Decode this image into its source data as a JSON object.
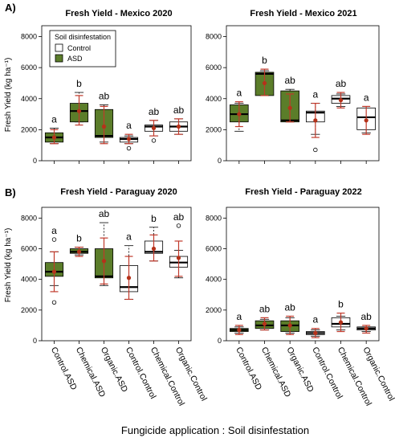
{
  "figure": {
    "x_axis_title": "Fungicide application : Soil disinfestation",
    "y_axis_title": "Fresh Yield (kg ha⁻¹)",
    "section_labels": [
      "A)",
      "B)"
    ],
    "y_tick_labels": [
      "0",
      "2000",
      "4000",
      "6000",
      "8000"
    ]
  },
  "legend": {
    "title": "Soil disinfestation",
    "items": [
      {
        "label": "Control",
        "color": "#ffffff"
      },
      {
        "label": "ASD",
        "color": "#5b7d2a"
      }
    ]
  },
  "colors": {
    "asd_fill": "#5b7d2a",
    "control_fill": "#ffffff",
    "mean_point": "#b5321a",
    "error_bar": "#c0392b"
  },
  "categories": [
    "Control.ASD",
    "Chemical.ASD",
    "Organic.ASD",
    "Control.Control",
    "Chemical.Control",
    "Organic.Control"
  ],
  "chart_data": [
    {
      "type": "box",
      "title": "Fresh Yield - Mexico 2020",
      "ylabel": "Fresh Yield (kg ha⁻¹)",
      "ylim": [
        0,
        8700
      ],
      "categories": [
        "Control.ASD",
        "Chemical.ASD",
        "Organic.ASD",
        "Control.Control",
        "Chemical.Control",
        "Organic.Control"
      ],
      "fills": [
        "ASD",
        "ASD",
        "ASD",
        "Control",
        "Control",
        "Control"
      ],
      "boxes": [
        {
          "whisker_low": 1100,
          "q1": 1200,
          "median": 1500,
          "q3": 1800,
          "whisker_high": 2100,
          "outliers": []
        },
        {
          "whisker_low": 2500,
          "q1": 2500,
          "median": 3200,
          "q3": 3700,
          "whisker_high": 4400,
          "outliers": []
        },
        {
          "whisker_low": 1200,
          "q1": 1500,
          "median": 1600,
          "q3": 3300,
          "whisker_high": 3600,
          "outliers": []
        },
        {
          "whisker_low": 1100,
          "q1": 1200,
          "median": 1400,
          "q3": 1500,
          "whisker_high": 1600,
          "outliers": [
            800
          ]
        },
        {
          "whisker_low": 1600,
          "q1": 1900,
          "median": 2200,
          "q3": 2300,
          "whisker_high": 2600,
          "outliers": [
            1300
          ]
        },
        {
          "whisker_low": 1700,
          "q1": 1900,
          "median": 2200,
          "q3": 2500,
          "whisker_high": 2700,
          "outliers": []
        }
      ],
      "means": [
        1500,
        3200,
        2200,
        1400,
        2100,
        2200
      ],
      "error_bars": [
        [
          1100,
          2000
        ],
        [
          2300,
          4200
        ],
        [
          1100,
          3500
        ],
        [
          1100,
          1700
        ],
        [
          1600,
          2600
        ],
        [
          1700,
          2700
        ]
      ],
      "letters": [
        "a",
        "b",
        "ab",
        "a",
        "ab",
        "ab"
      ]
    },
    {
      "type": "box",
      "title": "Fresh Yield - Mexico 2021",
      "ylim": [
        0,
        8700
      ],
      "categories": [
        "Control.ASD",
        "Chemical.ASD",
        "Organic.ASD",
        "Control.Control",
        "Chemical.Control",
        "Organic.Control"
      ],
      "fills": [
        "ASD",
        "ASD",
        "ASD",
        "Control",
        "Control",
        "Control"
      ],
      "boxes": [
        {
          "whisker_low": 1900,
          "q1": 2500,
          "median": 3000,
          "q3": 3600,
          "whisker_high": 3700,
          "outliers": []
        },
        {
          "whisker_low": 4200,
          "q1": 4200,
          "median": 5600,
          "q3": 5700,
          "whisker_high": 5800,
          "outliers": []
        },
        {
          "whisker_low": 2500,
          "q1": 2500,
          "median": 2600,
          "q3": 4500,
          "whisker_high": 4600,
          "outliers": []
        },
        {
          "whisker_low": 1700,
          "q1": 2500,
          "median": 3100,
          "q3": 3200,
          "whisker_high": 3700,
          "outliers": [
            700
          ]
        },
        {
          "whisker_low": 3500,
          "q1": 3700,
          "median": 4000,
          "q3": 4200,
          "whisker_high": 4300,
          "outliers": []
        },
        {
          "whisker_low": 1800,
          "q1": 2000,
          "median": 2800,
          "q3": 3400,
          "whisker_high": 3400,
          "outliers": []
        }
      ],
      "means": [
        3000,
        5000,
        3400,
        2600,
        3900,
        2600
      ],
      "error_bars": [
        [
          2200,
          3800
        ],
        [
          4200,
          5900
        ],
        [
          2500,
          4300
        ],
        [
          1500,
          3700
        ],
        [
          3400,
          4400
        ],
        [
          1700,
          3500
        ]
      ],
      "letters": [
        "a",
        "b",
        "ab",
        "a",
        "ab",
        "a"
      ]
    },
    {
      "type": "box",
      "title": "Fresh Yield - Paraguay 2020",
      "ylabel": "Fresh Yield (kg ha⁻¹)",
      "ylim": [
        0,
        8700
      ],
      "categories": [
        "Control.ASD",
        "Chemical.ASD",
        "Organic.ASD",
        "Control.Control",
        "Chemical.Control",
        "Organic.Control"
      ],
      "fills": [
        "ASD",
        "ASD",
        "ASD",
        "Control",
        "Control",
        "Control"
      ],
      "boxes": [
        {
          "whisker_low": 3600,
          "q1": 4200,
          "median": 4500,
          "q3": 5100,
          "whisker_high": 5800,
          "outliers": [
            6600,
            2500
          ]
        },
        {
          "whisker_low": 5600,
          "q1": 5700,
          "median": 5800,
          "q3": 6000,
          "whisker_high": 6100,
          "outliers": []
        },
        {
          "whisker_low": 3600,
          "q1": 4100,
          "median": 4200,
          "q3": 6000,
          "whisker_high": 7700,
          "outliers": []
        },
        {
          "whisker_low": 2700,
          "q1": 3200,
          "median": 3500,
          "q3": 4900,
          "whisker_high": 6200,
          "outliers": []
        },
        {
          "whisker_low": 5200,
          "q1": 5700,
          "median": 5800,
          "q3": 6500,
          "whisker_high": 7400,
          "outliers": []
        },
        {
          "whisker_low": 4100,
          "q1": 4800,
          "median": 5100,
          "q3": 5500,
          "whisker_high": 5900,
          "outliers": [
            7500
          ]
        }
      ],
      "means": [
        4500,
        5800,
        5200,
        4100,
        6000,
        5400
      ],
      "error_bars": [
        [
          3200,
          5800
        ],
        [
          5500,
          6100
        ],
        [
          3700,
          6700
        ],
        [
          2700,
          5500
        ],
        [
          5200,
          6900
        ],
        [
          4200,
          6500
        ]
      ],
      "letters": [
        "a",
        "b",
        "ab",
        "a",
        "b",
        "ab"
      ]
    },
    {
      "type": "box",
      "title": "Fresh Yield - Paraguay 2022",
      "ylim": [
        0,
        8700
      ],
      "categories": [
        "Control.ASD",
        "Chemical.ASD",
        "Organic.ASD",
        "Control.Control",
        "Chemical.Control",
        "Organic.Control"
      ],
      "fills": [
        "ASD",
        "ASD",
        "ASD",
        "Control",
        "Control",
        "Control"
      ],
      "boxes": [
        {
          "whisker_low": 500,
          "q1": 600,
          "median": 700,
          "q3": 800,
          "whisker_high": 900,
          "outliers": []
        },
        {
          "whisker_low": 700,
          "q1": 800,
          "median": 1000,
          "q3": 1300,
          "whisker_high": 1400,
          "outliers": []
        },
        {
          "whisker_low": 500,
          "q1": 600,
          "median": 1000,
          "q3": 1300,
          "whisker_high": 1500,
          "outliers": []
        },
        {
          "whisker_low": 300,
          "q1": 400,
          "median": 500,
          "q3": 600,
          "whisker_high": 700,
          "outliers": []
        },
        {
          "whisker_low": 700,
          "q1": 900,
          "median": 1100,
          "q3": 1500,
          "whisker_high": 1600,
          "outliers": []
        },
        {
          "whisker_low": 600,
          "q1": 700,
          "median": 800,
          "q3": 900,
          "whisker_high": 900,
          "outliers": []
        }
      ],
      "means": [
        700,
        1100,
        1000,
        500,
        1200,
        800
      ],
      "error_bars": [
        [
          400,
          1000
        ],
        [
          700,
          1500
        ],
        [
          400,
          1600
        ],
        [
          200,
          800
        ],
        [
          600,
          1800
        ],
        [
          500,
          1000
        ]
      ],
      "letters": [
        "a",
        "ab",
        "ab",
        "a",
        "b",
        "ab"
      ]
    }
  ]
}
